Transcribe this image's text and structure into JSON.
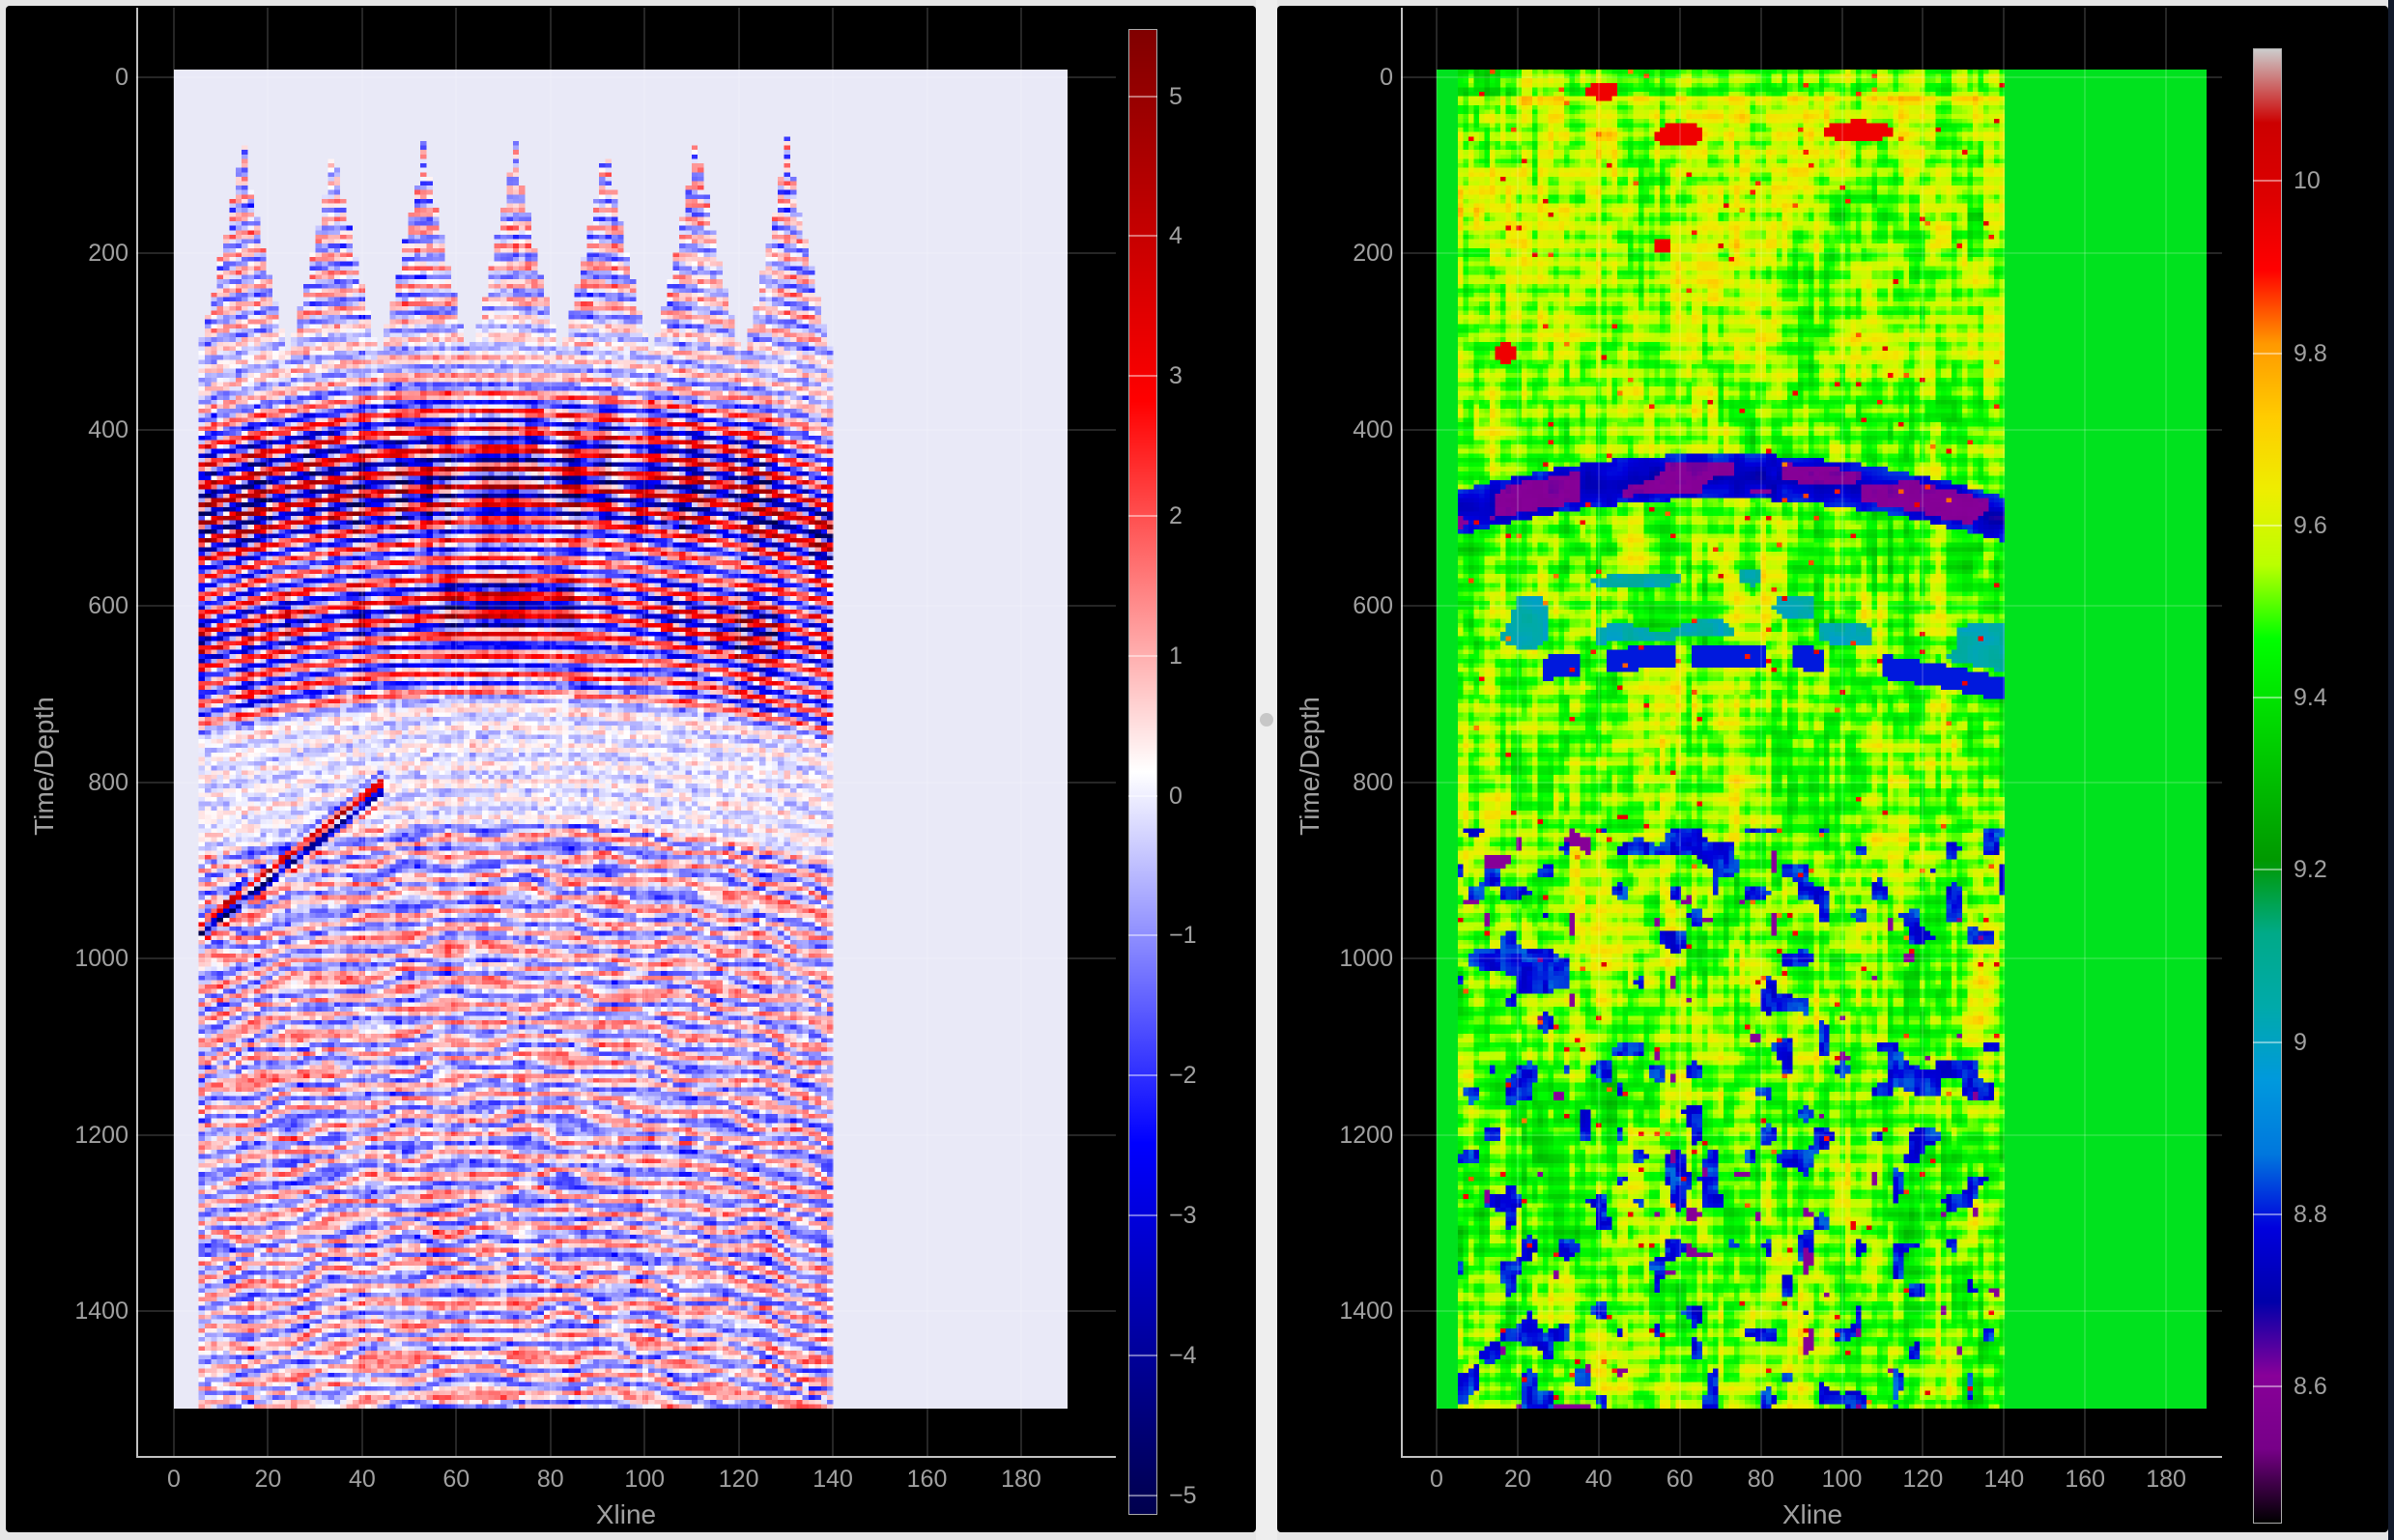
{
  "page": {
    "background_color": "#e6e6e6",
    "panel_color": "#000000",
    "splitter": {
      "color": "#eeeeee",
      "handle_color": "#c7c7c7"
    },
    "window_edge_color": "#121a2b",
    "grid_color": "rgba(255,255,255,0.15)",
    "axis_line_color": "#c2c2c2",
    "tick_label_color": "#a0a0a0"
  },
  "colormaps": {
    "seismic": [
      [
        0.0,
        [
          0,
          0,
          77
        ]
      ],
      [
        0.25,
        [
          0,
          0,
          255
        ]
      ],
      [
        0.5,
        [
          255,
          255,
          255
        ]
      ],
      [
        0.75,
        [
          255,
          0,
          0
        ]
      ],
      [
        1.0,
        [
          128,
          0,
          0
        ]
      ]
    ],
    "nipy_spectral": [
      [
        0.0,
        [
          0,
          0,
          0
        ]
      ],
      [
        0.05,
        [
          119,
          0,
          136
        ]
      ],
      [
        0.1,
        [
          136,
          0,
          153
        ]
      ],
      [
        0.15,
        [
          0,
          0,
          170
        ]
      ],
      [
        0.2,
        [
          0,
          0,
          221
        ]
      ],
      [
        0.25,
        [
          0,
          119,
          221
        ]
      ],
      [
        0.3,
        [
          0,
          153,
          221
        ]
      ],
      [
        0.35,
        [
          0,
          170,
          170
        ]
      ],
      [
        0.4,
        [
          0,
          170,
          136
        ]
      ],
      [
        0.45,
        [
          0,
          153,
          0
        ]
      ],
      [
        0.5,
        [
          0,
          187,
          0
        ]
      ],
      [
        0.55,
        [
          0,
          221,
          0
        ]
      ],
      [
        0.6,
        [
          0,
          255,
          0
        ]
      ],
      [
        0.65,
        [
          187,
          255,
          0
        ]
      ],
      [
        0.7,
        [
          238,
          238,
          0
        ]
      ],
      [
        0.75,
        [
          255,
          204,
          0
        ]
      ],
      [
        0.8,
        [
          255,
          153,
          0
        ]
      ],
      [
        0.85,
        [
          255,
          0,
          0
        ]
      ],
      [
        0.9,
        [
          221,
          0,
          0
        ]
      ],
      [
        0.95,
        [
          204,
          0,
          0
        ]
      ],
      [
        1.0,
        [
          204,
          204,
          204
        ]
      ]
    ]
  },
  "chart_data": [
    {
      "type": "heatmap",
      "panel": "left",
      "title": "",
      "xlabel": "Xline",
      "ylabel": "Time/Depth",
      "x_tick_values": [
        0,
        20,
        40,
        60,
        80,
        100,
        120,
        140,
        160,
        180
      ],
      "x_tick_labels": [
        "0",
        "20",
        "40",
        "60",
        "80",
        "100",
        "120",
        "140",
        "160",
        "180"
      ],
      "y_tick_values": [
        0,
        200,
        400,
        600,
        800,
        1000,
        1200,
        1400
      ],
      "y_tick_labels": [
        "0",
        "200",
        "400",
        "600",
        "800",
        "1000",
        "1200",
        "1400"
      ],
      "y_axis_inverted": true,
      "grid": true,
      "data_extent": {
        "x": [
          0,
          190
        ],
        "y": [
          -10,
          1510
        ]
      },
      "colormap": "seismic",
      "zmin": -5.14,
      "zmax": 5.48,
      "padding_color_rgb": [
        233,
        233,
        247
      ],
      "colorbar": {
        "tick_labels": [
          "5",
          "4",
          "3",
          "2",
          "1",
          "0",
          "−1",
          "−2",
          "−3",
          "−4",
          "−5"
        ],
        "tick_values": [
          5,
          4,
          3,
          2,
          1,
          0,
          -1,
          -2,
          -3,
          -4,
          -5
        ],
        "value_at_top": 5.48,
        "value_at_bottom": -5.14
      },
      "content": "Seismic amplitude section (blue-white-red wiggle reflectivity)",
      "features": {
        "signal_x_extent": [
          5,
          140
        ],
        "surface_mountain_peaks": 7,
        "surface_peak_top_depth": 80,
        "surface_valley_depth": 310,
        "anticline_arch": true,
        "strong_reflector_bands_depth": [
          [
            420,
            510
          ],
          [
            560,
            650
          ]
        ],
        "quiet_zone_depth": [
          705,
          845
        ],
        "deep_noisy_zone_below": 845,
        "dipping_event": {
          "x": [
            6,
            44
          ],
          "y": [
            820,
            965
          ]
        }
      }
    },
    {
      "type": "heatmap",
      "panel": "right",
      "title": "",
      "xlabel": "Xline",
      "ylabel": "Time/Depth",
      "x_tick_values": [
        0,
        20,
        40,
        60,
        80,
        100,
        120,
        140,
        160,
        180
      ],
      "x_tick_labels": [
        "0",
        "20",
        "40",
        "60",
        "80",
        "100",
        "120",
        "140",
        "160",
        "180"
      ],
      "y_tick_values": [
        0,
        200,
        400,
        600,
        800,
        1000,
        1200,
        1400
      ],
      "y_tick_labels": [
        "0",
        "200",
        "400",
        "600",
        "800",
        "1000",
        "1200",
        "1400"
      ],
      "y_axis_inverted": true,
      "grid": true,
      "data_extent": {
        "x": [
          0,
          190
        ],
        "y": [
          -10,
          1510
        ]
      },
      "colormap": "nipy_spectral",
      "zmin": 8.44,
      "zmax": 10.15,
      "padding_color_rgb": [
        0,
        226,
        30
      ],
      "colorbar": {
        "tick_labels": [
          "10",
          "9.8",
          "9.6",
          "9.4",
          "9.2",
          "9",
          "8.8",
          "8.6"
        ],
        "tick_values": [
          10,
          9.8,
          9.6,
          9.4,
          9.2,
          9,
          8.8,
          8.6
        ],
        "value_at_top": 10.154,
        "value_at_bottom": 8.441
      },
      "content": "Seismic attribute / impedance section on green background (~9.46)",
      "features": {
        "signal_x_extent": [
          5,
          140
        ],
        "background_value": 9.46,
        "yellow_noisy_upper_zone": [
          0,
          420
        ],
        "dark_blue_purple_arc_band": {
          "depth_center": 452,
          "value_range": [
            8.55,
            8.85
          ]
        },
        "secondary_teal_band_depth": 600,
        "thin_blue_band_depth": 655,
        "top_red_blobs_xy": [
          [
            60,
            64
          ],
          [
            104,
            60
          ],
          [
            41,
            16
          ],
          [
            56,
            190
          ],
          [
            17,
            312
          ]
        ],
        "deep_blue_blobs_below": 850,
        "vertical_striping": true
      }
    }
  ]
}
